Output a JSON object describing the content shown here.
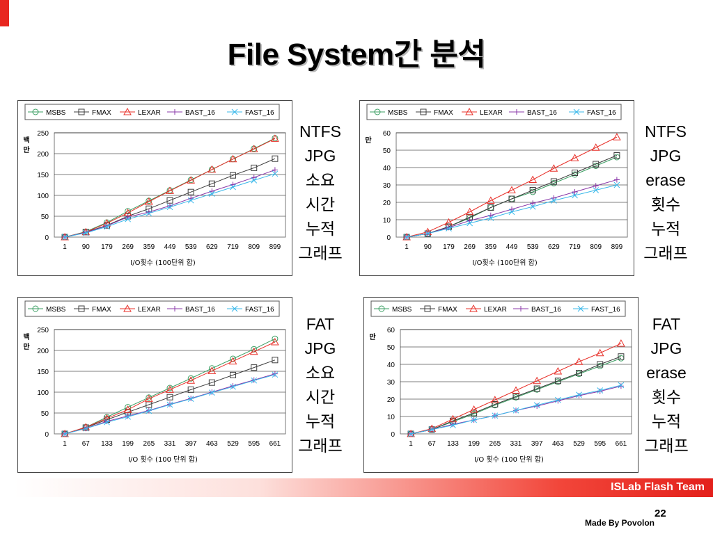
{
  "slide": {
    "title": "File System간 분석",
    "footer_brand": "ISLab Flash Team",
    "page_number": "22",
    "footer_credit": "Made By Povolon"
  },
  "colors": {
    "MSBS": "#3a9e62",
    "FMAX": "#3c3c3c",
    "LEXAR": "#e8312a",
    "BAST_16": "#8a37a8",
    "FAST_16": "#38b8ea",
    "accent": "#e8261f"
  },
  "captions": [
    {
      "lines": [
        "NTFS",
        "JPG",
        "소요",
        "시간",
        "누적",
        "그래프"
      ]
    },
    {
      "lines": [
        "NTFS",
        "JPG",
        "erase",
        "횟수",
        "누적",
        "그래프"
      ]
    },
    {
      "lines": [
        "FAT",
        "JPG",
        "소요",
        "시간",
        "누적",
        "그래프"
      ]
    },
    {
      "lines": [
        "FAT",
        "JPG",
        "erase",
        "횟수",
        "누적",
        "그래프"
      ]
    }
  ],
  "chart_data": [
    {
      "type": "line",
      "title": "",
      "xlabel": "I/O횟수 (100단위 합)",
      "ylabel": "백만",
      "ylim": [
        0,
        250
      ],
      "yticks": [
        0,
        50,
        100,
        150,
        200,
        250
      ],
      "grid": true,
      "legend": "top",
      "categories": [
        "1",
        "90",
        "179",
        "269",
        "359",
        "449",
        "539",
        "629",
        "719",
        "809",
        "899"
      ],
      "series": [
        {
          "name": "MSBS",
          "marker": "circle",
          "values": [
            0,
            13,
            35,
            62,
            87,
            112,
            137,
            162,
            187,
            212,
            237
          ]
        },
        {
          "name": "FMAX",
          "marker": "square",
          "values": [
            0,
            12,
            28,
            50,
            68,
            88,
            108,
            128,
            148,
            166,
            188
          ]
        },
        {
          "name": "LEXAR",
          "marker": "triangle",
          "values": [
            0,
            12,
            33,
            58,
            85,
            111,
            136,
            162,
            187,
            211,
            236
          ]
        },
        {
          "name": "BAST_16",
          "marker": "plus",
          "values": [
            0,
            11,
            27,
            48,
            60,
            75,
            93,
            110,
            126,
            143,
            161
          ]
        },
        {
          "name": "FAST_16",
          "marker": "x",
          "values": [
            0,
            10,
            25,
            43,
            57,
            72,
            88,
            104,
            120,
            136,
            152
          ]
        }
      ]
    },
    {
      "type": "line",
      "title": "",
      "xlabel": "I/O횟수 (100단위 합)",
      "ylabel": "만",
      "ylim": [
        0,
        60
      ],
      "yticks": [
        0,
        10,
        20,
        30,
        40,
        50,
        60
      ],
      "grid": true,
      "legend": "top",
      "categories": [
        "1",
        "90",
        "179",
        "269",
        "359",
        "449",
        "539",
        "629",
        "719",
        "809",
        "899"
      ],
      "series": [
        {
          "name": "MSBS",
          "marker": "circle",
          "values": [
            0,
            2,
            6,
            11,
            17,
            22,
            26,
            31,
            36,
            41,
            46
          ]
        },
        {
          "name": "FMAX",
          "marker": "square",
          "values": [
            0,
            2,
            6,
            11.5,
            17,
            22,
            27,
            32,
            37,
            42,
            47
          ]
        },
        {
          "name": "LEXAR",
          "marker": "triangle",
          "values": [
            0,
            3,
            8.5,
            14.5,
            21,
            27,
            33,
            39.5,
            45.5,
            51.5,
            57.5
          ]
        },
        {
          "name": "BAST_16",
          "marker": "plus",
          "values": [
            0,
            2,
            5.5,
            9.5,
            12.5,
            16,
            19.5,
            22.5,
            26,
            29.5,
            33
          ]
        },
        {
          "name": "FAST_16",
          "marker": "x",
          "values": [
            0,
            2,
            5,
            8,
            11,
            14.5,
            17.5,
            21,
            24,
            27,
            30
          ]
        }
      ]
    },
    {
      "type": "line",
      "title": "",
      "xlabel": "I/O 횟수 (100 단위 합)",
      "ylabel": "백만",
      "ylim": [
        0,
        250
      ],
      "yticks": [
        0,
        50,
        100,
        150,
        200,
        250
      ],
      "grid": true,
      "legend": "top",
      "categories": [
        "1",
        "67",
        "133",
        "199",
        "265",
        "331",
        "397",
        "463",
        "529",
        "595",
        "661"
      ],
      "series": [
        {
          "name": "MSBS",
          "marker": "circle",
          "values": [
            0,
            16,
            40,
            64,
            87,
            110,
            133,
            157,
            180,
            203,
            228
          ]
        },
        {
          "name": "FMAX",
          "marker": "square",
          "values": [
            0,
            15,
            34,
            52,
            70,
            88,
            106,
            123,
            141,
            159,
            177
          ]
        },
        {
          "name": "LEXAR",
          "marker": "triangle",
          "values": [
            0,
            16,
            37,
            58,
            84,
            106,
            128,
            151,
            174,
            197,
            220
          ]
        },
        {
          "name": "BAST_16",
          "marker": "plus",
          "values": [
            0,
            13,
            30,
            43,
            56,
            71,
            85,
            100,
            115,
            129,
            144
          ]
        },
        {
          "name": "FAST_16",
          "marker": "x",
          "values": [
            0,
            13,
            28,
            41,
            55,
            70,
            84,
            99,
            113,
            128,
            142
          ]
        }
      ]
    },
    {
      "type": "line",
      "title": "",
      "xlabel": "I/O 횟수 (100 단위 합)",
      "ylabel": "만",
      "ylim": [
        0,
        60
      ],
      "yticks": [
        0,
        10,
        20,
        30,
        40,
        50,
        60
      ],
      "grid": true,
      "legend": "top",
      "categories": [
        "1",
        "67",
        "133",
        "199",
        "265",
        "331",
        "397",
        "463",
        "529",
        "595",
        "661"
      ],
      "series": [
        {
          "name": "MSBS",
          "marker": "circle",
          "values": [
            0,
            2.5,
            7,
            11.5,
            16.5,
            21,
            25.5,
            30,
            34.5,
            39,
            43.5
          ]
        },
        {
          "name": "FMAX",
          "marker": "square",
          "values": [
            0,
            2.5,
            7.5,
            12,
            17,
            21.5,
            26,
            30.5,
            35,
            40,
            44.5
          ]
        },
        {
          "name": "LEXAR",
          "marker": "triangle",
          "values": [
            0,
            3,
            8.5,
            14,
            19.5,
            25,
            30.5,
            36,
            41.5,
            46.5,
            52
          ]
        },
        {
          "name": "BAST_16",
          "marker": "plus",
          "values": [
            0,
            2.5,
            5.5,
            8,
            10.5,
            13.5,
            16,
            19,
            22,
            24.5,
            27.5
          ]
        },
        {
          "name": "FAST_16",
          "marker": "x",
          "values": [
            0,
            2.5,
            5,
            8,
            10.5,
            13.5,
            16.5,
            19.5,
            22.5,
            25,
            28
          ]
        }
      ]
    }
  ]
}
